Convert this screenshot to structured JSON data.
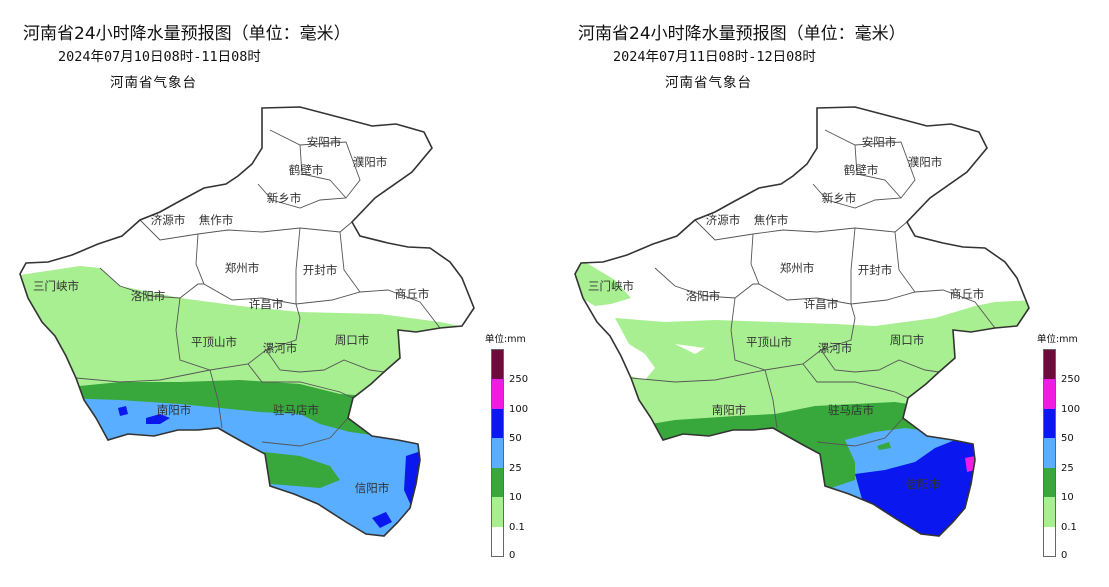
{
  "panels": [
    {
      "title": "河南省24小时降水量预报图（单位：毫米）",
      "subtitle": "2024年07月10日08时-11日08时",
      "source": "河南省气象台"
    },
    {
      "title": "河南省24小时降水量预报图（单位：毫米）",
      "subtitle": "2024年07月11日08时-12日08时",
      "source": "河南省气象台"
    }
  ],
  "cities": {
    "anyang": "安阳市",
    "hebi": "鹤壁市",
    "puyang": "濮阳市",
    "xinxiang": "新乡市",
    "jiyuan": "济源市",
    "jiaozuo": "焦作市",
    "sanmenxia": "三门峡市",
    "zhengzhou": "郑州市",
    "kaifeng": "开封市",
    "luoyang": "洛阳市",
    "shangqiu": "商丘市",
    "xuchang": "许昌市",
    "pingdingshan": "平顶山市",
    "luohe": "漯河市",
    "zhoukou": "周口市",
    "nanyang": "南阳市",
    "zhumadian": "驻马店市",
    "xinyang": "信阳市"
  },
  "legend": {
    "unit_label": "单位:mm",
    "levels": [
      {
        "label": "250",
        "color": "#6e0a3c"
      },
      {
        "label": "100",
        "color": "#ee1de6"
      },
      {
        "label": "50",
        "color": "#0a17ee"
      },
      {
        "label": "25",
        "color": "#5aaeff"
      },
      {
        "label": "10",
        "color": "#38a83c"
      },
      {
        "label": "0.1",
        "color": "#a8ef91"
      },
      {
        "label": "0",
        "color": "#ffffff"
      }
    ]
  },
  "colors": {
    "light_rain": "#a8ef91",
    "moderate_rain": "#38a83c",
    "heavy_rain": "#5aaeff",
    "rainstorm": "#0a17ee",
    "heavy_rainstorm": "#ee1de6",
    "extreme_rainstorm": "#6e0a3c",
    "no_rain": "#ffffff",
    "border": "#333333"
  }
}
